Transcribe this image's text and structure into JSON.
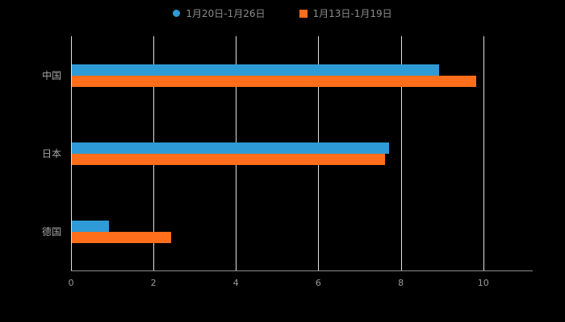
{
  "chart": {
    "background": "#000000",
    "axis_color": "#8c8c8c",
    "gridline_color": "#e2e2e2",
    "text_color": "#9a9a9a"
  },
  "chart_data": {
    "type": "bar",
    "orientation": "horizontal",
    "title": "",
    "categories": [
      "中国",
      "日本",
      "德国"
    ],
    "series": [
      {
        "name": "1月20日-1月26日",
        "color": "#2e9bd6",
        "marker": "circle",
        "values": [
          8.9,
          7.7,
          0.9
        ]
      },
      {
        "name": "1月13日-1月19日",
        "color": "#ff6e1a",
        "marker": "square",
        "values": [
          9.8,
          7.6,
          2.4
        ]
      }
    ],
    "xlim": [
      0,
      11.2
    ],
    "xticks": [
      0,
      2,
      4,
      6,
      8,
      10
    ],
    "grid": true,
    "legend_position": "top"
  }
}
